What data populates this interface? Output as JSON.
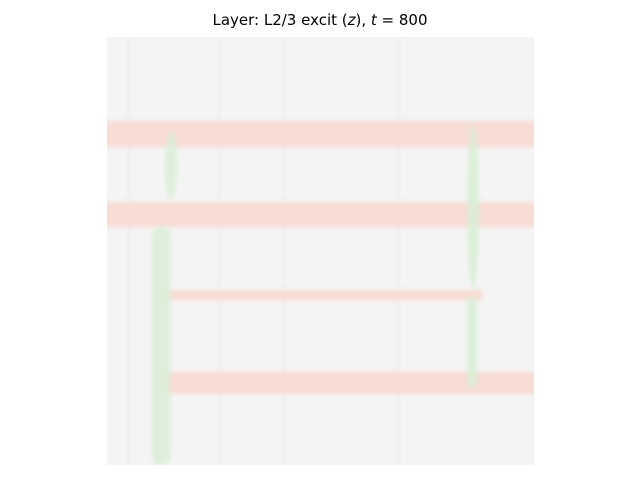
{
  "title": {
    "prefix": "Layer: L2/3 excit (",
    "var": "z",
    "mid": "), ",
    "tvar": "t",
    "eq": " = ",
    "value": "800"
  },
  "colors": {
    "background": "#f4f4f4",
    "red_band": "#f9ddd8",
    "green_band": "#d6eed6",
    "faint_stripe": "#ebebeb"
  }
}
